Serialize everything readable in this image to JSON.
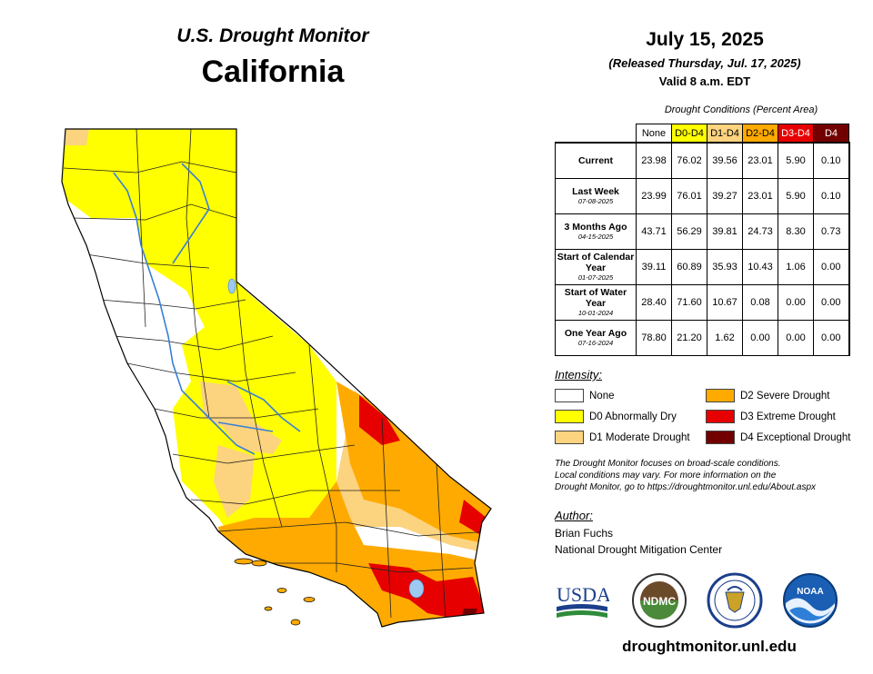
{
  "header": {
    "title_line1": "U.S. Drought Monitor",
    "title_line2": "California",
    "date": "July 15, 2025",
    "released": "(Released Thursday, Jul. 17, 2025)",
    "valid": "Valid 8 a.m. EDT"
  },
  "table": {
    "title": "Drought Conditions (Percent Area)",
    "columns": [
      "None",
      "D0-D4",
      "D1-D4",
      "D2-D4",
      "D3-D4",
      "D4"
    ],
    "column_colors": [
      "#ffffff",
      "#ffff00",
      "#fcd37f",
      "#ffaa00",
      "#e60000",
      "#730000"
    ],
    "column_text_colors": [
      "#000000",
      "#000000",
      "#000000",
      "#000000",
      "#ffffff",
      "#ffffff"
    ],
    "rows": [
      {
        "label": "Current",
        "sub": "",
        "values": [
          "23.98",
          "76.02",
          "39.56",
          "23.01",
          "5.90",
          "0.10"
        ]
      },
      {
        "label": "Last Week",
        "sub": "07-08-2025",
        "values": [
          "23.99",
          "76.01",
          "39.27",
          "23.01",
          "5.90",
          "0.10"
        ]
      },
      {
        "label": "3 Months Ago",
        "sub": "04-15-2025",
        "values": [
          "43.71",
          "56.29",
          "39.81",
          "24.73",
          "8.30",
          "0.73"
        ]
      },
      {
        "label": "Start of Calendar Year",
        "sub": "01-07-2025",
        "values": [
          "39.11",
          "60.89",
          "35.93",
          "10.43",
          "1.06",
          "0.00"
        ]
      },
      {
        "label": "Start of Water Year",
        "sub": "10-01-2024",
        "values": [
          "28.40",
          "71.60",
          "10.67",
          "0.08",
          "0.00",
          "0.00"
        ]
      },
      {
        "label": "One Year Ago",
        "sub": "07-16-2024",
        "values": [
          "78.80",
          "21.20",
          "1.62",
          "0.00",
          "0.00",
          "0.00"
        ]
      }
    ]
  },
  "legend": {
    "title": "Intensity:",
    "items": [
      {
        "label": "None",
        "color": "#ffffff"
      },
      {
        "label": "D0 Abnormally Dry",
        "color": "#ffff00"
      },
      {
        "label": "D1 Moderate Drought",
        "color": "#fcd37f"
      },
      {
        "label": "D2 Severe Drought",
        "color": "#ffaa00"
      },
      {
        "label": "D3 Extreme Drought",
        "color": "#e60000"
      },
      {
        "label": "D4 Exceptional Drought",
        "color": "#730000"
      }
    ]
  },
  "note": {
    "line1": "The Drought Monitor focuses on broad-scale conditions.",
    "line2": "Local conditions may vary. For more information on the",
    "line3": "Drought Monitor, go to https://droughtmonitor.unl.edu/About.aspx"
  },
  "author": {
    "title": "Author:",
    "name": "Brian Fuchs",
    "org": "National Drought Mitigation Center"
  },
  "logos": {
    "usda": "USDA",
    "ndmc": "NDMC",
    "noaa": "NOAA"
  },
  "footer": {
    "site": "droughtmonitor.unl.edu"
  }
}
